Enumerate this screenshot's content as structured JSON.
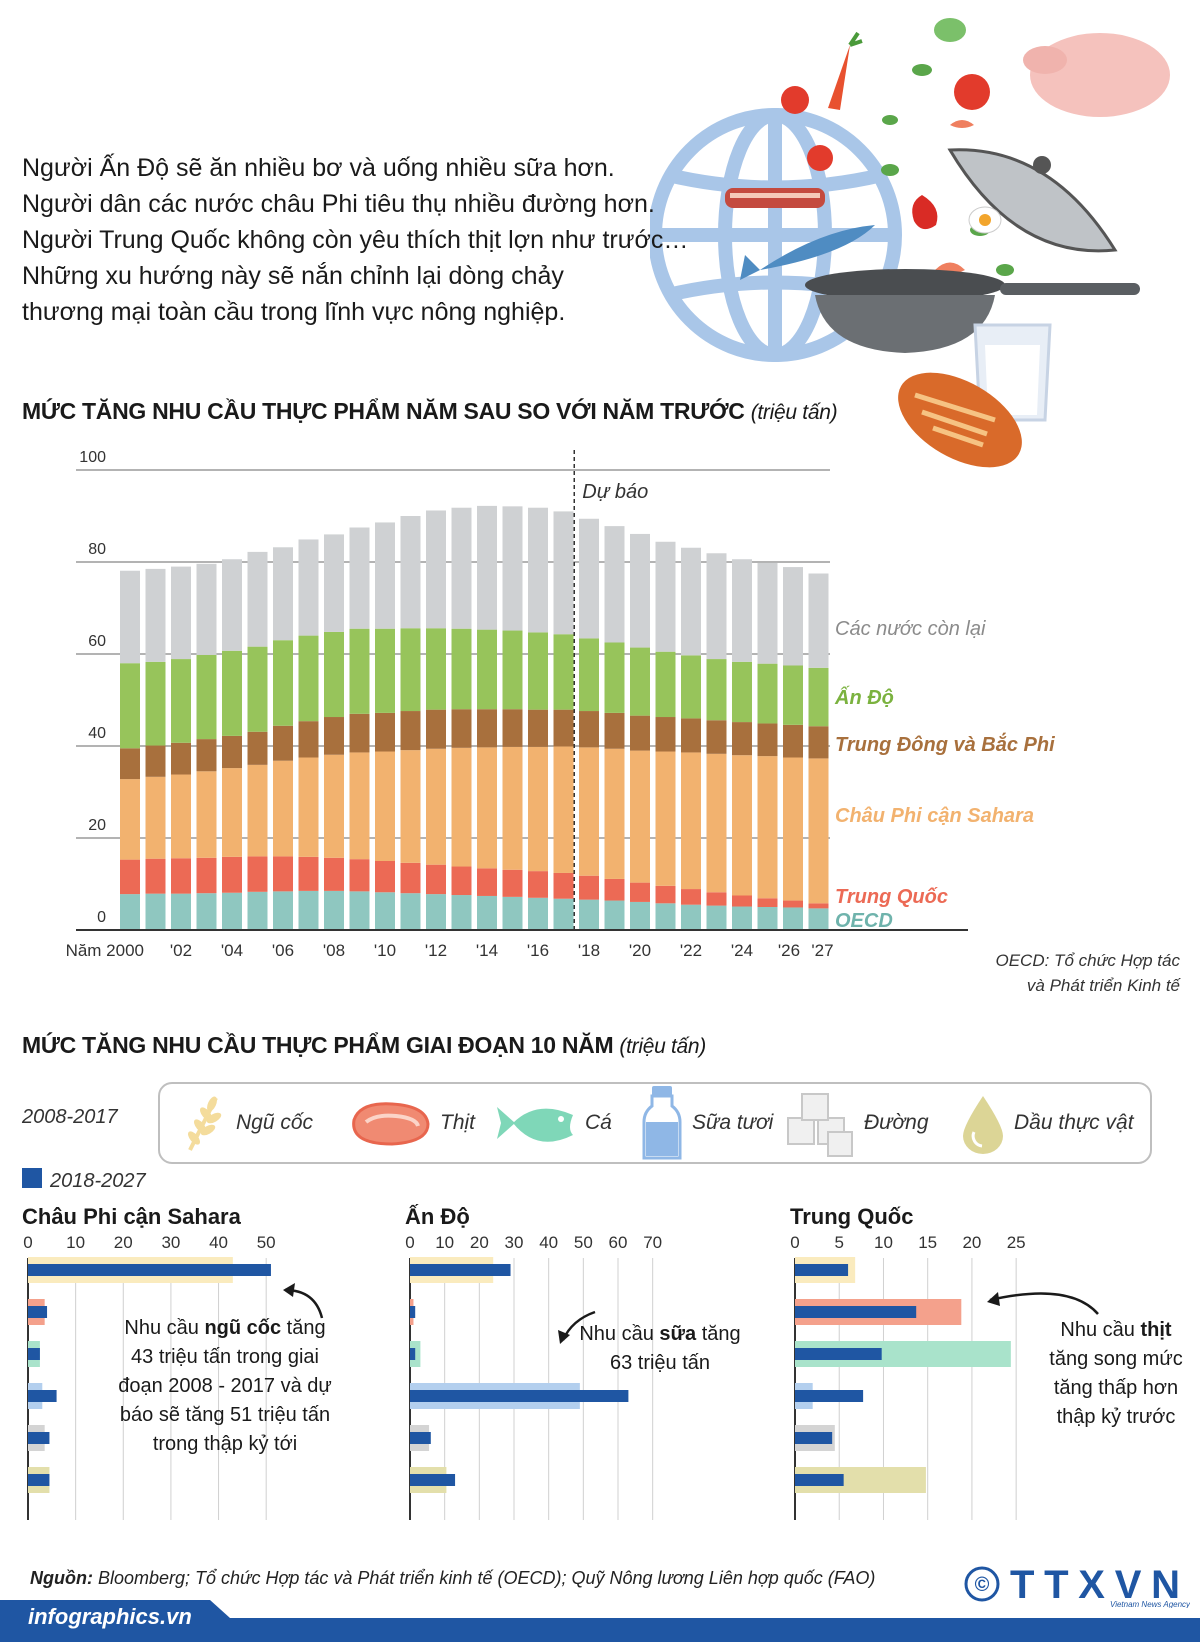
{
  "intro": {
    "lines": [
      "Người Ấn Độ sẽ ăn nhiều bơ và uống nhiều sữa hơn.",
      "Người dân các nước châu Phi tiêu thụ nhiều đường hơn.",
      "Người Trung Quốc không còn yêu thích thịt lợn như trước…",
      "Những xu hướng này sẽ nắn chỉnh lại dòng chảy",
      "thương mại toàn cầu trong lĩnh vực nông nghiệp."
    ]
  },
  "colors": {
    "oecd": "#8fc7c0",
    "china": "#ec6a55",
    "ssa": "#f2b26f",
    "mena": "#a8703d",
    "india": "#97c45b",
    "rest": "#cfd1d3",
    "new_period": "#1f56a3",
    "cereal": "#faebbe",
    "meat": "#f4a18c",
    "fish": "#a9e3cb",
    "milk": "#b3cfee",
    "sugar": "#d4d4d4",
    "oil": "#e3dfab",
    "source_bar": "#1f56a3"
  },
  "chart_data": [
    {
      "type": "bar",
      "stacked": true,
      "title": "MỨC TĂNG NHU CẦU THỰC PHẨM NĂM SAU SO VỚI NĂM TRƯỚC",
      "unit": "(triệu tấn)",
      "annotation": "Dự báo",
      "forecast_from": 2018,
      "ylim": [
        0,
        100
      ],
      "yticks": [
        "0",
        "20",
        "40",
        "60",
        "80",
        "100"
      ],
      "x": [
        2000,
        2001,
        2002,
        2003,
        2004,
        2005,
        2006,
        2007,
        2008,
        2009,
        2010,
        2011,
        2012,
        2013,
        2014,
        2015,
        2016,
        2017,
        2018,
        2019,
        2020,
        2021,
        2022,
        2023,
        2024,
        2025,
        2026,
        2027
      ],
      "xtick_labels": [
        "Năm 2000",
        "'02",
        "'04",
        "'06",
        "'08",
        "'10",
        "'12",
        "'14",
        "'16",
        "'18",
        "'20",
        "'22",
        "'24",
        "'26",
        "'27"
      ],
      "series": [
        {
          "name": "OECD",
          "color_key": "oecd",
          "values": [
            7.8,
            7.9,
            7.9,
            8.0,
            8.1,
            8.3,
            8.4,
            8.5,
            8.5,
            8.4,
            8.2,
            8.0,
            7.8,
            7.6,
            7.4,
            7.2,
            7.0,
            6.8,
            6.6,
            6.4,
            6.1,
            5.8,
            5.5,
            5.3,
            5.1,
            5.0,
            4.9,
            4.7
          ]
        },
        {
          "name": "Trung Quốc",
          "color_key": "china",
          "values": [
            7.5,
            7.6,
            7.7,
            7.7,
            7.8,
            7.7,
            7.6,
            7.4,
            7.2,
            7.0,
            6.8,
            6.6,
            6.4,
            6.2,
            6.0,
            5.9,
            5.8,
            5.6,
            5.2,
            4.7,
            4.2,
            3.8,
            3.4,
            2.9,
            2.4,
            1.9,
            1.5,
            1.1
          ]
        },
        {
          "name": "Châu Phi cận Sahara",
          "color_key": "ssa",
          "values": [
            17.5,
            17.8,
            18.2,
            18.8,
            19.3,
            19.9,
            20.8,
            21.6,
            22.4,
            23.2,
            23.8,
            24.5,
            25.2,
            25.8,
            26.3,
            26.7,
            27.0,
            27.5,
            27.9,
            28.3,
            28.7,
            29.2,
            29.7,
            30.1,
            30.5,
            30.9,
            31.1,
            31.5
          ]
        },
        {
          "name": "Trung Đông và Bắc Phi",
          "color_key": "mena",
          "values": [
            6.7,
            6.8,
            6.9,
            7.0,
            7.0,
            7.2,
            7.6,
            7.9,
            8.2,
            8.4,
            8.4,
            8.5,
            8.5,
            8.4,
            8.3,
            8.2,
            8.1,
            8.0,
            7.9,
            7.8,
            7.6,
            7.5,
            7.4,
            7.3,
            7.2,
            7.1,
            7.1,
            7.0
          ]
        },
        {
          "name": "Ấn Độ",
          "color_key": "india",
          "values": [
            18.5,
            18.2,
            18.2,
            18.3,
            18.5,
            18.5,
            18.6,
            18.6,
            18.5,
            18.5,
            18.3,
            18.0,
            17.7,
            17.5,
            17.3,
            17.1,
            16.8,
            16.4,
            15.8,
            15.3,
            14.8,
            14.2,
            13.7,
            13.3,
            13.1,
            13.0,
            12.9,
            12.7
          ]
        },
        {
          "name": "Các nước còn lại",
          "color_key": "rest",
          "values": [
            20.1,
            20.2,
            20.1,
            19.8,
            19.9,
            20.6,
            20.2,
            20.9,
            21.2,
            22.0,
            23.1,
            24.4,
            25.6,
            26.3,
            26.9,
            27.0,
            27.1,
            26.7,
            26.0,
            25.3,
            24.7,
            23.9,
            23.4,
            23.0,
            22.3,
            21.9,
            21.4,
            20.5
          ]
        }
      ]
    },
    {
      "type": "bar",
      "orientation": "horizontal",
      "title": "MỨC TĂNG NHU CẦU THỰC PHẨM GIAI ĐOẠN 10 NĂM",
      "unit": "(triệu tấn)",
      "periods": [
        "2008-2017",
        "2018-2027"
      ],
      "categories": [
        "Ngũ cốc",
        "Thịt",
        "Cá",
        "Sữa tươi",
        "Đường",
        "Dầu thực vật"
      ],
      "category_color_keys": [
        "cereal",
        "meat",
        "fish",
        "milk",
        "sugar",
        "oil"
      ],
      "panels": [
        {
          "region": "Châu Phi cận Sahara",
          "xlim": [
            0,
            55
          ],
          "xticks": [
            0,
            10,
            20,
            30,
            40,
            50
          ],
          "old": [
            43,
            3.5,
            2.5,
            3,
            3.5,
            4.5
          ],
          "new": [
            51,
            4,
            2.5,
            6,
            4.5,
            4.5
          ],
          "note_html": "Nhu cầu <b>ngũ cốc</b> tăng<br>43 triệu tấn trong giai<br>đoạn 2008 - 2017 và dự<br>báo sẽ tăng 51 triệu tấn<br>trong thập kỷ tới"
        },
        {
          "region": "Ấn Độ",
          "xlim": [
            0,
            75
          ],
          "xticks": [
            0,
            10,
            20,
            30,
            40,
            50,
            60,
            70
          ],
          "old": [
            24,
            1,
            3,
            49,
            5.5,
            10.5
          ],
          "new": [
            29,
            1.5,
            1.5,
            63,
            6,
            13
          ],
          "note_html": "Nhu cầu <b>sữa</b> tăng<br>63 triệu tấn"
        },
        {
          "region": "Trung Quốc",
          "xlim": [
            0,
            26
          ],
          "xticks": [
            0,
            5,
            10,
            15,
            20,
            25
          ],
          "old": [
            6.8,
            18.8,
            24.4,
            2,
            4.5,
            14.8
          ],
          "new": [
            6,
            13.7,
            9.8,
            7.7,
            4.2,
            5.5
          ],
          "note_html": "Nhu cầu <b>thịt</b><br>tăng song mức<br>tăng thấp hơn<br>thập kỷ trước"
        }
      ]
    }
  ],
  "labels": {
    "forecast": "Dự báo",
    "oecd_note_1": "OECD: Tổ chức Hợp tác",
    "oecd_note_2": "và Phát triển Kinh tế",
    "period_old": "2008-2017",
    "period_new": "2018-2027"
  },
  "footer": {
    "source_label": "Nguồn:",
    "source_text": " Bloomberg; Tổ chức Hợp tác và Phát triển kinh tế (OECD); Quỹ Nông lương Liên hợp quốc (FAO)",
    "site": "infographics.vn",
    "logo_text": "TTXVN",
    "logo_sub": "Vietnam News Agency",
    "copyright": "©"
  }
}
